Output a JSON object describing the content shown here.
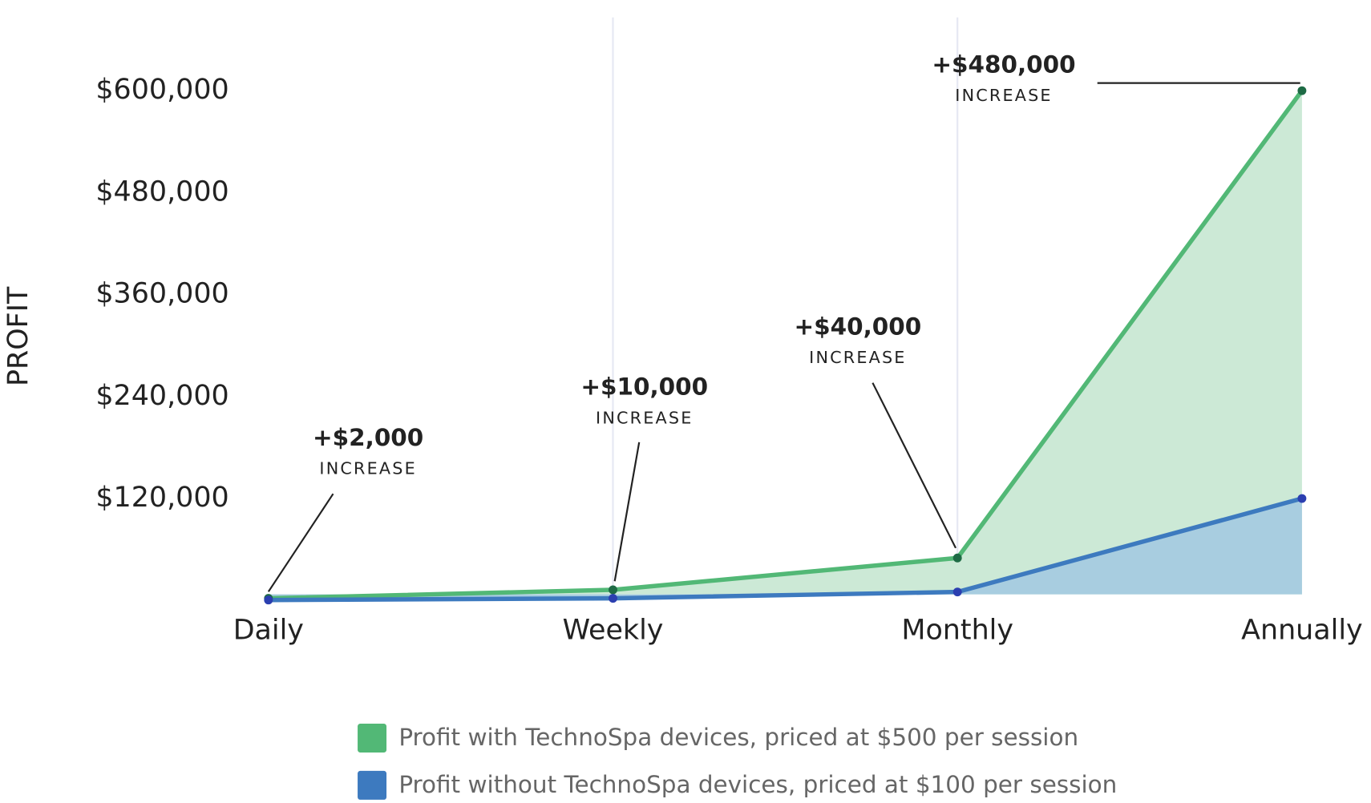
{
  "chart_data": {
    "type": "area",
    "y_label": "PROFIT",
    "categories": [
      "Daily",
      "Weekly",
      "Monthly",
      "Annually"
    ],
    "series": [
      {
        "name": "Profit with TechnoSpa devices, priced at $500 per session",
        "color": "#52b876",
        "fill": "#cce9d6",
        "point_color": "#1e6b45",
        "values": [
          2500,
          12500,
          50000,
          600000
        ]
      },
      {
        "name": "Profit without TechnoSpa devices, priced at $100 per session",
        "color": "#3d7abf",
        "fill": "#a8cde0",
        "point_color": "#2b3fb0",
        "values": [
          500,
          2500,
          10000,
          120000
        ]
      }
    ],
    "ylim": [
      0,
      680000
    ],
    "yticks": [
      {
        "value": 120000,
        "label": "$120,000"
      },
      {
        "value": 240000,
        "label": "$240,000"
      },
      {
        "value": 360000,
        "label": "$360,000"
      },
      {
        "value": 480000,
        "label": "$480,000"
      },
      {
        "value": 600000,
        "label": "$600,000"
      }
    ],
    "annotations": [
      {
        "text": "+$2,000",
        "subtext": "INCREASE"
      },
      {
        "text": "+$10,000",
        "subtext": "INCREASE"
      },
      {
        "text": "+$40,000",
        "subtext": "INCREASE"
      },
      {
        "text": "+$480,000",
        "subtext": "INCREASE"
      }
    ]
  }
}
